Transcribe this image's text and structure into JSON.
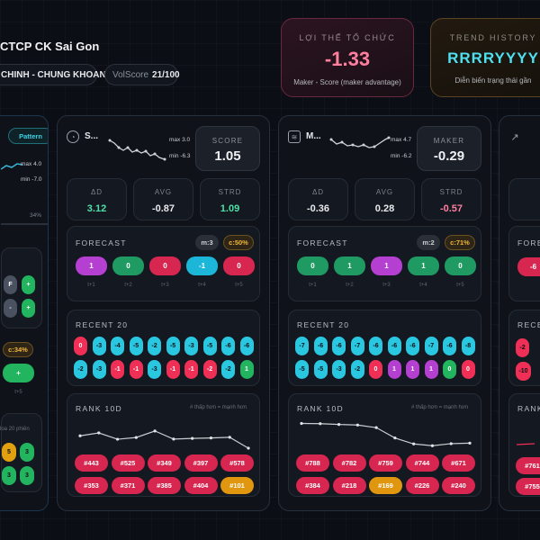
{
  "header": {
    "title": "CTCP CK Sai Gon",
    "sector": "CHINH - CHUNG KHOAN",
    "volscore_label": "VolScore",
    "volscore_value": "21/100"
  },
  "cards": [
    {
      "label": "LỢI THẾ TỔ CHỨC",
      "value": "-1.33",
      "sub": "Maker - Score (maker advantage)"
    },
    {
      "label": "TREND HISTORY",
      "value": "RRRRYYYY",
      "sub": "Diễn biến trạng thái gần"
    }
  ],
  "left_partial": {
    "pattern_label": "Pattern",
    "spark_max": "max 4.0",
    "spark_min": "min -7.0",
    "pct": "34%",
    "forecast_cells": [
      "F",
      "+",
      "-",
      "+"
    ],
    "conf": "c:34%",
    "forecast_next": "+",
    "forecast_next_t": "t+5",
    "recent_note": "loa 20 phiên",
    "recent_cells": [
      "5",
      "3",
      "3",
      "3"
    ]
  },
  "columns": [
    {
      "name": "S...",
      "spark_max": "max 3.0",
      "spark_min": "min -6.3",
      "score_label": "SCORE",
      "score_value": "1.05",
      "stats": [
        {
          "label": "ΔD",
          "value": "3.12",
          "color": "#4ee0a8"
        },
        {
          "label": "AVG",
          "value": "-0.87",
          "color": "#e8e9ec"
        },
        {
          "label": "STRD",
          "value": "1.09",
          "color": "#4ee0a8"
        }
      ],
      "forecast_title": "FORECAST",
      "forecast_m": "m:3",
      "forecast_c": "c:50%",
      "forecast": [
        {
          "v": "1",
          "color": "#b43fd0",
          "t": "t+1"
        },
        {
          "v": "0",
          "color": "#1f9a62",
          "t": "t+2"
        },
        {
          "v": "0",
          "color": "#d7264f",
          "t": "t+3"
        },
        {
          "v": "-1",
          "color": "#1bb6d8",
          "t": "t+4"
        },
        {
          "v": "0",
          "color": "#d7264f",
          "t": "t+5"
        }
      ],
      "recent_title": "RECENT 20",
      "recent": [
        [
          "0",
          "#ef2f55"
        ],
        [
          "-3",
          "#2ac7e0"
        ],
        [
          "-4",
          "#2ac7e0"
        ],
        [
          "-5",
          "#2ac7e0"
        ],
        [
          "-2",
          "#2ac7e0"
        ],
        [
          "-5",
          "#2ac7e0"
        ],
        [
          "-3",
          "#2ac7e0"
        ],
        [
          "-5",
          "#2ac7e0"
        ],
        [
          "-6",
          "#2ac7e0"
        ],
        [
          "-6",
          "#2ac7e0"
        ],
        [
          "-2",
          "#2ac7e0"
        ],
        [
          "-3",
          "#2ac7e0"
        ],
        [
          "-1",
          "#ef2f55"
        ],
        [
          "-1",
          "#ef2f55"
        ],
        [
          "-3",
          "#2ac7e0"
        ],
        [
          "-1",
          "#ef2f55"
        ],
        [
          "-1",
          "#ef2f55"
        ],
        [
          "-2",
          "#ef2f55"
        ],
        [
          "-2",
          "#2ac7e0"
        ],
        [
          "1",
          "#22b45f"
        ]
      ],
      "rank_title": "RANK 10D",
      "rank_note": "# thấp hơn = mạnh hơn",
      "rank_series": [
        443,
        525,
        349,
        397,
        578,
        353,
        371,
        385,
        404,
        101
      ],
      "ranks": [
        {
          "v": "#443",
          "color": "#d7264f"
        },
        {
          "v": "#525",
          "color": "#d7264f"
        },
        {
          "v": "#349",
          "color": "#d7264f"
        },
        {
          "v": "#397",
          "color": "#d7264f"
        },
        {
          "v": "#578",
          "color": "#d7264f"
        },
        {
          "v": "#353",
          "color": "#d7264f"
        },
        {
          "v": "#371",
          "color": "#d7264f"
        },
        {
          "v": "#385",
          "color": "#d7264f"
        },
        {
          "v": "#404",
          "color": "#d7264f"
        },
        {
          "v": "#101",
          "color": "#e0960f"
        }
      ]
    },
    {
      "name": "M...",
      "spark_max": "max 4.7",
      "spark_min": "min -6.2",
      "score_label": "MAKER",
      "score_value": "-0.29",
      "stats": [
        {
          "label": "ΔD",
          "value": "-0.36",
          "color": "#e8e9ec"
        },
        {
          "label": "AVG",
          "value": "0.28",
          "color": "#e8e9ec"
        },
        {
          "label": "STRD",
          "value": "-0.57",
          "color": "#ff7f9f"
        }
      ],
      "forecast_title": "FORECAST",
      "forecast_m": "m:2",
      "forecast_c": "c:71%",
      "forecast": [
        {
          "v": "0",
          "color": "#1f9a62",
          "t": "t+1"
        },
        {
          "v": "1",
          "color": "#1f9a62",
          "t": "t+2"
        },
        {
          "v": "1",
          "color": "#b43fd0",
          "t": "t+3"
        },
        {
          "v": "1",
          "color": "#1f9a62",
          "t": "t+4"
        },
        {
          "v": "0",
          "color": "#1f9a62",
          "t": "t+5"
        }
      ],
      "recent_title": "RECENT 20",
      "recent": [
        [
          "-7",
          "#2ac7e0"
        ],
        [
          "-6",
          "#2ac7e0"
        ],
        [
          "-6",
          "#2ac7e0"
        ],
        [
          "-7",
          "#2ac7e0"
        ],
        [
          "-6",
          "#2ac7e0"
        ],
        [
          "-6",
          "#2ac7e0"
        ],
        [
          "-6",
          "#2ac7e0"
        ],
        [
          "-7",
          "#2ac7e0"
        ],
        [
          "-6",
          "#2ac7e0"
        ],
        [
          "-8",
          "#2ac7e0"
        ],
        [
          "-5",
          "#2ac7e0"
        ],
        [
          "-5",
          "#2ac7e0"
        ],
        [
          "-3",
          "#2ac7e0"
        ],
        [
          "-2",
          "#2ac7e0"
        ],
        [
          "0",
          "#ef2f55"
        ],
        [
          "1",
          "#b43fd0"
        ],
        [
          "1",
          "#b43fd0"
        ],
        [
          "1",
          "#b43fd0"
        ],
        [
          "0",
          "#22b45f"
        ],
        [
          "0",
          "#ef2f55"
        ]
      ],
      "rank_title": "RANK 10D",
      "rank_note": "# thấp hơn = mạnh hơn",
      "rank_series": [
        788,
        782,
        759,
        744,
        671,
        384,
        218,
        169,
        226,
        240
      ],
      "ranks": [
        {
          "v": "#788",
          "color": "#d7264f"
        },
        {
          "v": "#782",
          "color": "#d7264f"
        },
        {
          "v": "#759",
          "color": "#d7264f"
        },
        {
          "v": "#744",
          "color": "#d7264f"
        },
        {
          "v": "#671",
          "color": "#d7264f"
        },
        {
          "v": "#384",
          "color": "#d7264f"
        },
        {
          "v": "#218",
          "color": "#d7264f"
        },
        {
          "v": "#169",
          "color": "#e0960f"
        },
        {
          "v": "#226",
          "color": "#d7264f"
        },
        {
          "v": "#240",
          "color": "#d7264f"
        }
      ]
    }
  ],
  "right_partial": {
    "forecast_title": "FORE",
    "forecast_first": "-6",
    "recent_title": "RECEN",
    "recent_cells": [
      "-2",
      "-10"
    ],
    "rank_title": "RANK",
    "ranks": [
      "#761",
      "#755"
    ]
  }
}
